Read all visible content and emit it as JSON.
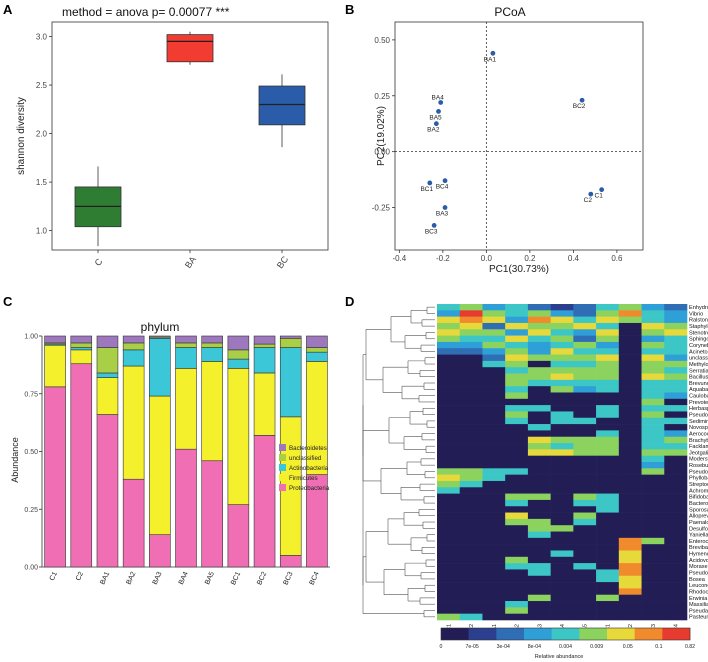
{
  "panel_labels": [
    "A",
    "B",
    "C",
    "D"
  ],
  "chart_data": [
    {
      "type": "box",
      "panel": "A",
      "title": "method = anova   p= 0.00077 ***",
      "ylabel": "shannon diversity",
      "ylim": [
        0.8,
        3.15
      ],
      "yticks": [
        1.0,
        1.5,
        2.0,
        2.5,
        3.0
      ],
      "yticklabels": [
        "1.0",
        "1.5",
        "2.0",
        "2.5",
        "3.0"
      ],
      "categories": [
        "C",
        "BA",
        "BC"
      ],
      "boxes": [
        {
          "name": "C",
          "min": 0.84,
          "q1": 1.04,
          "median": 1.25,
          "q3": 1.45,
          "max": 1.66,
          "color": "#2e7d32"
        },
        {
          "name": "BA",
          "min": 2.71,
          "q1": 2.74,
          "median": 2.95,
          "q3": 3.02,
          "max": 3.05,
          "color": "#f23b31"
        },
        {
          "name": "BC",
          "min": 1.86,
          "q1": 2.09,
          "median": 2.3,
          "q3": 2.49,
          "max": 2.61,
          "color": "#2a5caa"
        }
      ]
    },
    {
      "type": "scatter",
      "panel": "B",
      "title": "PCoA",
      "xlabel": "PC1(30.73%)",
      "ylabel": "PC2(19.02%)",
      "xlim": [
        -0.42,
        0.72
      ],
      "ylim": [
        -0.44,
        0.58
      ],
      "xticks": [
        -0.4,
        -0.2,
        0.0,
        0.2,
        0.4,
        0.6
      ],
      "xticklabels": [
        "-0.4",
        "-0.2",
        "0.0",
        "0.2",
        "0.4",
        "0.6"
      ],
      "yticks": [
        -0.25,
        0.0,
        0.25,
        0.5
      ],
      "yticklabels": [
        "-0.25",
        "0.00",
        "0.25",
        "0.50"
      ],
      "color": "#2a5caa",
      "points": [
        {
          "label": "BA1",
          "x": 0.03,
          "y": 0.44
        },
        {
          "label": "BA4",
          "x": -0.21,
          "y": 0.22
        },
        {
          "label": "BA5",
          "x": -0.22,
          "y": 0.18
        },
        {
          "label": "BA2",
          "x": -0.23,
          "y": 0.125
        },
        {
          "label": "BC2",
          "x": 0.44,
          "y": 0.23
        },
        {
          "label": "BC4",
          "x": -0.19,
          "y": -0.13
        },
        {
          "label": "BC1",
          "x": -0.26,
          "y": -0.14
        },
        {
          "label": "C1",
          "x": 0.53,
          "y": -0.17
        },
        {
          "label": "C2",
          "x": 0.48,
          "y": -0.19
        },
        {
          "label": "BA3",
          "x": -0.19,
          "y": -0.25
        },
        {
          "label": "BC3",
          "x": -0.24,
          "y": -0.33
        }
      ]
    },
    {
      "type": "stacked_bar",
      "panel": "C",
      "title": "phylum",
      "ylabel": "Abundance",
      "ylim": [
        0,
        1
      ],
      "yticks": [
        0.0,
        0.25,
        0.5,
        0.75,
        1.0
      ],
      "yticklabels": [
        "0.00",
        "0.25",
        "0.50",
        "0.75",
        "1.00"
      ],
      "categories": [
        "C1",
        "C2",
        "BA1",
        "BA2",
        "BA3",
        "BA4",
        "BA5",
        "BC1",
        "BC2",
        "BC3",
        "BC4"
      ],
      "legend": [
        "Bacteroidetes",
        "unclassified",
        "Actinobacteria",
        "Firmicutes",
        "Proteobacteria"
      ],
      "series": [
        {
          "name": "Proteobacteria",
          "color": "#f06eb4",
          "values": [
            0.78,
            0.88,
            0.66,
            0.38,
            0.14,
            0.51,
            0.46,
            0.27,
            0.57,
            0.05,
            0.4
          ]
        },
        {
          "name": "Firmicutes",
          "color": "#f4f02c",
          "values": [
            0.18,
            0.06,
            0.16,
            0.49,
            0.6,
            0.35,
            0.43,
            0.59,
            0.27,
            0.6,
            0.49
          ]
        },
        {
          "name": "Actinobacteria",
          "color": "#3cc7d9",
          "values": [
            0.005,
            0.01,
            0.02,
            0.07,
            0.25,
            0.09,
            0.06,
            0.04,
            0.11,
            0.3,
            0.04
          ]
        },
        {
          "name": "unclassified",
          "color": "#a8cf45",
          "values": [
            0.005,
            0.02,
            0.11,
            0.03,
            0.005,
            0.02,
            0.02,
            0.04,
            0.015,
            0.04,
            0.02
          ]
        },
        {
          "name": "Bacteroidetes",
          "color": "#9e78bd",
          "values": [
            0.03,
            0.03,
            0.05,
            0.03,
            0.005,
            0.03,
            0.03,
            0.06,
            0.035,
            0.01,
            0.05
          ]
        }
      ]
    },
    {
      "type": "heatmap",
      "panel": "D",
      "columns": [
        "C1",
        "C2",
        "BA1",
        "BA2",
        "BA3",
        "BA4",
        "BA5",
        "BC1",
        "BC2",
        "BC3",
        "BC4"
      ],
      "rows": [
        "Enhydrobacter",
        "Vibrio",
        "Ralstonia",
        "Staphylococcus",
        "Stenotrophomonas",
        "Sphingomonas",
        "Corynebacterium",
        "Acinetobacter",
        "unclassified",
        "Methylobacterium",
        "Serratia",
        "Bacillus",
        "Brevundimonas",
        "Aquabacterium",
        "Caulobacter",
        "Prevotella",
        "Herbaspirillum",
        "Pseudoalteromonas",
        "Sediminibacterium",
        "Novosphingobium",
        "Aerococcus",
        "Brachybacterium",
        "Facklamia",
        "Jeotgalicoccus",
        "Moderstobacter",
        "Roseburia",
        "Pseudomonas",
        "Phyllobacterium",
        "Streptococcus",
        "Achromobacter",
        "Bifidobacterium",
        "Bacteroides",
        "Sporosarcina",
        "Alloprevotella",
        "Paenalcaligenes",
        "Desulfovibrio",
        "Yaniella",
        "Enterococcus",
        "Brevibacterium",
        "Hymenobacter",
        "Acidovorax",
        "Moraxella",
        "Pseudoclavibacter",
        "Bosea",
        "Leuconostoc",
        "Rhodococcus",
        "Erwinia",
        "Massilia",
        "Pseudaclovorax",
        "Pasteurella"
      ],
      "scale_label": "Relative abundance",
      "scale_ticks": [
        "0",
        "7e-05",
        "3e-04",
        "8e-04",
        "0.004",
        "0.009",
        "0.05",
        "0.1",
        "0.82"
      ],
      "values": [
        [
          4,
          5,
          3,
          4,
          2,
          1,
          2,
          4,
          5,
          3,
          2
        ],
        [
          3,
          8,
          5,
          4,
          5,
          3,
          2,
          5,
          7,
          4,
          3
        ],
        [
          6,
          7,
          6,
          3,
          7,
          6,
          4,
          6,
          5,
          4,
          3
        ],
        [
          5,
          6,
          2,
          6,
          5,
          5,
          6,
          4,
          0,
          6,
          5
        ],
        [
          6,
          5,
          5,
          3,
          6,
          4,
          3,
          6,
          0,
          5,
          6
        ],
        [
          5,
          4,
          4,
          6,
          4,
          5,
          2,
          5,
          0,
          3,
          4
        ],
        [
          3,
          3,
          5,
          4,
          3,
          4,
          5,
          3,
          0,
          5,
          4
        ],
        [
          2,
          2,
          3,
          5,
          3,
          6,
          4,
          4,
          0,
          4,
          4
        ],
        [
          0,
          0,
          2,
          6,
          5,
          5,
          5,
          6,
          0,
          6,
          3
        ],
        [
          0,
          0,
          4,
          5,
          0,
          4,
          4,
          5,
          0,
          5,
          5
        ],
        [
          0,
          0,
          0,
          4,
          5,
          5,
          5,
          5,
          0,
          5,
          4
        ],
        [
          0,
          0,
          0,
          5,
          5,
          6,
          5,
          5,
          0,
          6,
          5
        ],
        [
          0,
          0,
          0,
          5,
          4,
          4,
          4,
          4,
          0,
          4,
          4
        ],
        [
          0,
          0,
          0,
          4,
          0,
          5,
          3,
          4,
          0,
          4,
          4
        ],
        [
          0,
          0,
          0,
          5,
          0,
          0,
          0,
          0,
          0,
          4,
          3
        ],
        [
          0,
          0,
          0,
          0,
          0,
          0,
          0,
          0,
          0,
          5,
          0
        ],
        [
          0,
          0,
          0,
          4,
          4,
          0,
          0,
          4,
          0,
          4,
          4
        ],
        [
          0,
          0,
          0,
          5,
          0,
          4,
          0,
          4,
          0,
          5,
          0
        ],
        [
          0,
          0,
          0,
          4,
          0,
          4,
          4,
          0,
          0,
          4,
          4
        ],
        [
          0,
          0,
          0,
          0,
          4,
          0,
          0,
          0,
          0,
          4,
          0
        ],
        [
          0,
          0,
          0,
          0,
          0,
          0,
          0,
          4,
          0,
          4,
          3
        ],
        [
          0,
          0,
          0,
          0,
          6,
          5,
          5,
          5,
          0,
          4,
          5
        ],
        [
          0,
          0,
          0,
          0,
          5,
          4,
          5,
          5,
          0,
          4,
          4
        ],
        [
          0,
          0,
          0,
          0,
          6,
          6,
          5,
          5,
          0,
          5,
          5
        ],
        [
          0,
          0,
          0,
          0,
          0,
          0,
          0,
          0,
          0,
          4,
          0
        ],
        [
          0,
          0,
          0,
          0,
          0,
          0,
          0,
          0,
          0,
          3,
          0
        ],
        [
          5,
          5,
          4,
          4,
          0,
          0,
          0,
          0,
          0,
          5,
          0
        ],
        [
          6,
          5,
          4,
          0,
          0,
          0,
          0,
          0,
          0,
          0,
          0
        ],
        [
          5,
          4,
          0,
          0,
          0,
          0,
          0,
          0,
          0,
          0,
          0
        ],
        [
          4,
          0,
          0,
          0,
          0,
          0,
          0,
          0,
          0,
          0,
          0
        ],
        [
          0,
          0,
          0,
          5,
          5,
          0,
          5,
          4,
          0,
          0,
          0
        ],
        [
          0,
          0,
          0,
          4,
          0,
          0,
          4,
          4,
          0,
          0,
          0
        ],
        [
          0,
          0,
          0,
          0,
          0,
          0,
          0,
          4,
          0,
          0,
          0
        ],
        [
          0,
          0,
          0,
          6,
          0,
          0,
          5,
          0,
          0,
          0,
          0
        ],
        [
          0,
          0,
          0,
          5,
          5,
          0,
          4,
          0,
          0,
          0,
          0
        ],
        [
          0,
          0,
          0,
          0,
          5,
          5,
          0,
          0,
          0,
          0,
          0
        ],
        [
          0,
          0,
          0,
          0,
          4,
          0,
          0,
          0,
          0,
          0,
          0
        ],
        [
          0,
          0,
          0,
          0,
          0,
          0,
          0,
          0,
          7,
          5,
          0
        ],
        [
          0,
          0,
          0,
          0,
          0,
          0,
          0,
          0,
          7,
          0,
          0
        ],
        [
          0,
          0,
          0,
          0,
          0,
          4,
          0,
          0,
          6,
          0,
          0
        ],
        [
          0,
          0,
          0,
          5,
          0,
          0,
          0,
          0,
          6,
          0,
          0
        ],
        [
          0,
          0,
          0,
          4,
          4,
          0,
          4,
          0,
          7,
          0,
          0
        ],
        [
          0,
          0,
          0,
          0,
          4,
          0,
          0,
          4,
          7,
          0,
          0
        ],
        [
          0,
          0,
          0,
          0,
          0,
          0,
          0,
          4,
          6,
          0,
          0
        ],
        [
          0,
          0,
          0,
          0,
          0,
          0,
          0,
          0,
          6,
          0,
          0
        ],
        [
          0,
          0,
          0,
          0,
          0,
          0,
          0,
          0,
          7,
          0,
          0
        ],
        [
          0,
          0,
          0,
          0,
          5,
          0,
          0,
          5,
          0,
          0,
          0
        ],
        [
          0,
          0,
          0,
          4,
          0,
          0,
          0,
          0,
          0,
          0,
          0
        ],
        [
          0,
          0,
          0,
          5,
          0,
          0,
          0,
          0,
          0,
          0,
          0
        ],
        [
          5,
          4,
          0,
          0,
          0,
          0,
          0,
          0,
          0,
          0,
          0
        ]
      ],
      "palette": [
        "#221e55",
        "#2c3f8e",
        "#2f6db5",
        "#2f9fd8",
        "#3cc7c6",
        "#8bd35e",
        "#e7d93a",
        "#f08a2c",
        "#e63b2e"
      ]
    }
  ]
}
